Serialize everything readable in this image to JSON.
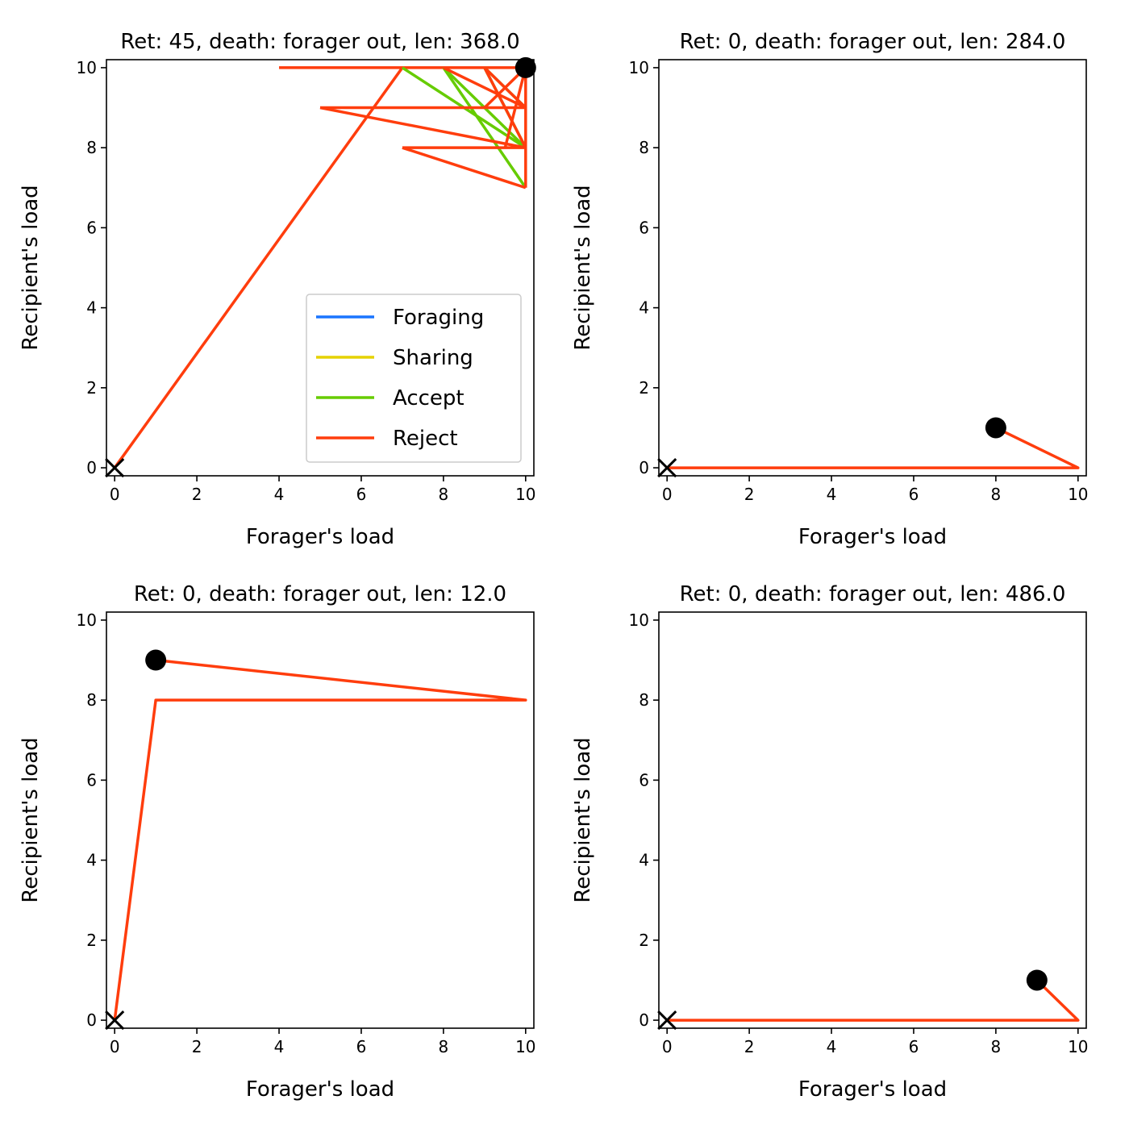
{
  "colors": {
    "Foraging": "#1a75ff",
    "Sharing": "#e6d200",
    "Accept": "#66cc00",
    "Reject": "#ff3d0d",
    "marker": "#000000"
  },
  "legend": {
    "entries": [
      "Foraging",
      "Sharing",
      "Accept",
      "Reject"
    ],
    "placement": "lower-right"
  },
  "chart_data": [
    {
      "type": "line",
      "title": "Ret: 45, death: forager out, len: 368.0",
      "xlabel": "Forager's load",
      "ylabel": "Recipient's load",
      "xlim": [
        -0.2,
        10.2
      ],
      "ylim": [
        -0.2,
        10.2
      ],
      "xticks": [
        0,
        2,
        4,
        6,
        8,
        10
      ],
      "yticks": [
        0,
        2,
        4,
        6,
        8,
        10
      ],
      "grid": false,
      "show_legend": true,
      "start_marker": {
        "shape": "x",
        "x": 0,
        "y": 0
      },
      "end_marker": {
        "shape": "circle",
        "x": 10,
        "y": 10
      },
      "segments": [
        {
          "kind": "Reject",
          "points": [
            [
              0,
              0
            ],
            [
              7,
              10
            ]
          ]
        },
        {
          "kind": "Reject",
          "points": [
            [
              4,
              10
            ],
            [
              10,
              10
            ]
          ]
        },
        {
          "kind": "Accept",
          "points": [
            [
              7,
              10
            ],
            [
              10,
              8
            ]
          ]
        },
        {
          "kind": "Accept",
          "points": [
            [
              8,
              10
            ],
            [
              10,
              7
            ]
          ]
        },
        {
          "kind": "Accept",
          "points": [
            [
              9,
              10
            ],
            [
              10,
              9
            ]
          ]
        },
        {
          "kind": "Accept",
          "points": [
            [
              8,
              10
            ],
            [
              10,
              8
            ]
          ]
        },
        {
          "kind": "Accept",
          "points": [
            [
              9,
              10
            ],
            [
              10,
              8
            ]
          ]
        },
        {
          "kind": "Reject",
          "points": [
            [
              5,
              9
            ],
            [
              10,
              9
            ]
          ]
        },
        {
          "kind": "Reject",
          "points": [
            [
              5,
              9
            ],
            [
              10,
              8
            ]
          ]
        },
        {
          "kind": "Reject",
          "points": [
            [
              7,
              8
            ],
            [
              10,
              8
            ]
          ]
        },
        {
          "kind": "Reject",
          "points": [
            [
              7,
              8
            ],
            [
              10,
              7
            ]
          ]
        },
        {
          "kind": "Reject",
          "points": [
            [
              10,
              7
            ],
            [
              10,
              10
            ]
          ]
        },
        {
          "kind": "Reject",
          "points": [
            [
              9,
              9
            ],
            [
              10,
              10
            ]
          ]
        },
        {
          "kind": "Reject",
          "points": [
            [
              9,
              10
            ],
            [
              10,
              9
            ]
          ]
        },
        {
          "kind": "Reject",
          "points": [
            [
              8,
              10
            ],
            [
              10,
              9
            ]
          ]
        },
        {
          "kind": "Reject",
          "points": [
            [
              9,
              10
            ],
            [
              10,
              8
            ]
          ]
        },
        {
          "kind": "Reject",
          "points": [
            [
              9.5,
              8
            ],
            [
              10,
              10
            ]
          ]
        }
      ]
    },
    {
      "type": "line",
      "title": "Ret: 0, death: forager out, len: 284.0",
      "xlabel": "Forager's load",
      "ylabel": "Recipient's load",
      "xlim": [
        -0.2,
        10.2
      ],
      "ylim": [
        -0.2,
        10.2
      ],
      "xticks": [
        0,
        2,
        4,
        6,
        8,
        10
      ],
      "yticks": [
        0,
        2,
        4,
        6,
        8,
        10
      ],
      "grid": false,
      "show_legend": false,
      "start_marker": {
        "shape": "x",
        "x": 0,
        "y": 0
      },
      "end_marker": {
        "shape": "circle",
        "x": 8,
        "y": 1
      },
      "segments": [
        {
          "kind": "Reject",
          "points": [
            [
              0,
              0
            ],
            [
              10,
              0
            ],
            [
              8,
              1
            ]
          ]
        }
      ]
    },
    {
      "type": "line",
      "title": "Ret: 0, death: forager out, len: 12.0",
      "xlabel": "Forager's load",
      "ylabel": "Recipient's load",
      "xlim": [
        -0.2,
        10.2
      ],
      "ylim": [
        -0.2,
        10.2
      ],
      "xticks": [
        0,
        2,
        4,
        6,
        8,
        10
      ],
      "yticks": [
        0,
        2,
        4,
        6,
        8,
        10
      ],
      "grid": false,
      "show_legend": false,
      "start_marker": {
        "shape": "x",
        "x": 0,
        "y": 0
      },
      "end_marker": {
        "shape": "circle",
        "x": 1,
        "y": 9
      },
      "segments": [
        {
          "kind": "Reject",
          "points": [
            [
              0,
              0
            ],
            [
              1,
              8
            ],
            [
              10,
              8
            ],
            [
              1,
              9
            ]
          ]
        }
      ]
    },
    {
      "type": "line",
      "title": "Ret: 0, death: forager out, len: 486.0",
      "xlabel": "Forager's load",
      "ylabel": "Recipient's load",
      "xlim": [
        -0.2,
        10.2
      ],
      "ylim": [
        -0.2,
        10.2
      ],
      "xticks": [
        0,
        2,
        4,
        6,
        8,
        10
      ],
      "yticks": [
        0,
        2,
        4,
        6,
        8,
        10
      ],
      "grid": false,
      "show_legend": false,
      "start_marker": {
        "shape": "x",
        "x": 0,
        "y": 0
      },
      "end_marker": {
        "shape": "circle",
        "x": 9,
        "y": 1
      },
      "segments": [
        {
          "kind": "Reject",
          "points": [
            [
              0,
              0
            ],
            [
              10,
              0
            ],
            [
              9,
              1
            ]
          ]
        }
      ]
    }
  ]
}
